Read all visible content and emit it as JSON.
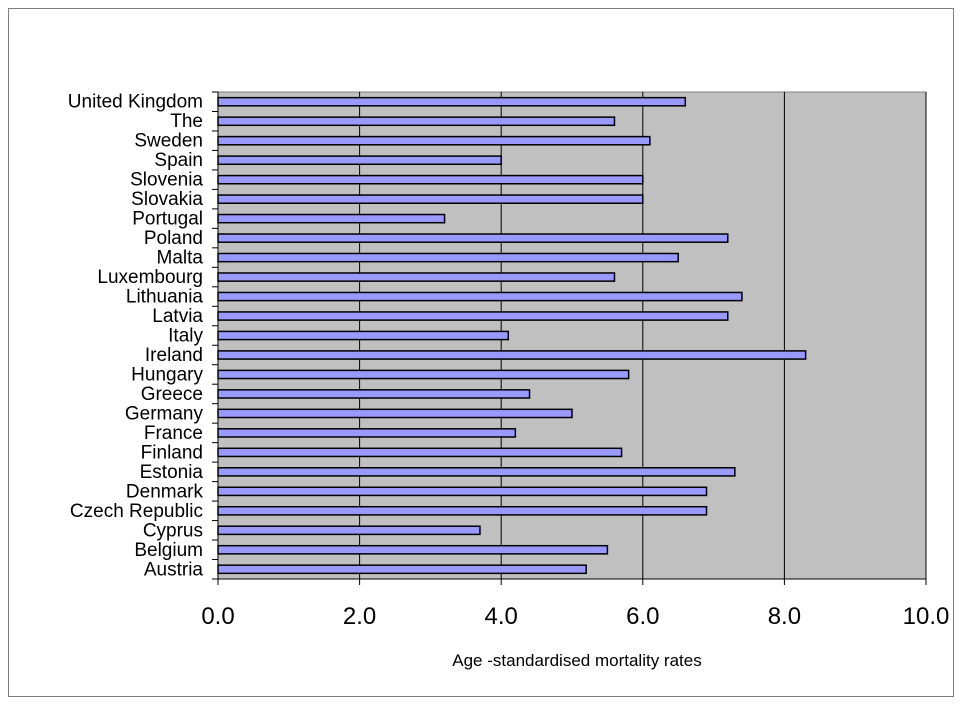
{
  "chart_data": {
    "type": "bar",
    "orientation": "horizontal",
    "title": "",
    "xlabel": "Age -standardised mortality rates",
    "ylabel": "",
    "xlim": [
      0,
      10
    ],
    "x_tick_values": [
      0,
      2,
      4,
      6,
      8,
      10
    ],
    "x_tick_labels": [
      "0.0",
      "2.0",
      "4.0",
      "6.0",
      "8.0",
      "10.0"
    ],
    "grid": "vertical",
    "legend": "none",
    "categories": [
      "United Kingdom",
      "The",
      "Sweden",
      "Spain",
      "Slovenia",
      "Slovakia",
      "Portugal",
      "Poland",
      "Malta",
      "Luxembourg",
      "Lithuania",
      "Latvia",
      "Italy",
      "Ireland",
      "Hungary",
      "Greece",
      "Germany",
      "France",
      "Finland",
      "Estonia",
      "Denmark",
      "Czech Republic",
      "Cyprus",
      "Belgium",
      "Austria"
    ],
    "values": [
      6.6,
      5.6,
      6.1,
      4.0,
      6.0,
      6.0,
      3.2,
      7.2,
      6.5,
      5.6,
      7.4,
      7.2,
      4.1,
      8.3,
      5.8,
      4.4,
      5.0,
      4.2,
      5.7,
      7.3,
      6.9,
      6.9,
      3.7,
      5.5,
      5.2
    ],
    "colors": {
      "bar_fill": "#9999ff",
      "bar_stroke": "#000000",
      "plot_background": "#c0c0c0",
      "gridline": "#000000"
    }
  }
}
